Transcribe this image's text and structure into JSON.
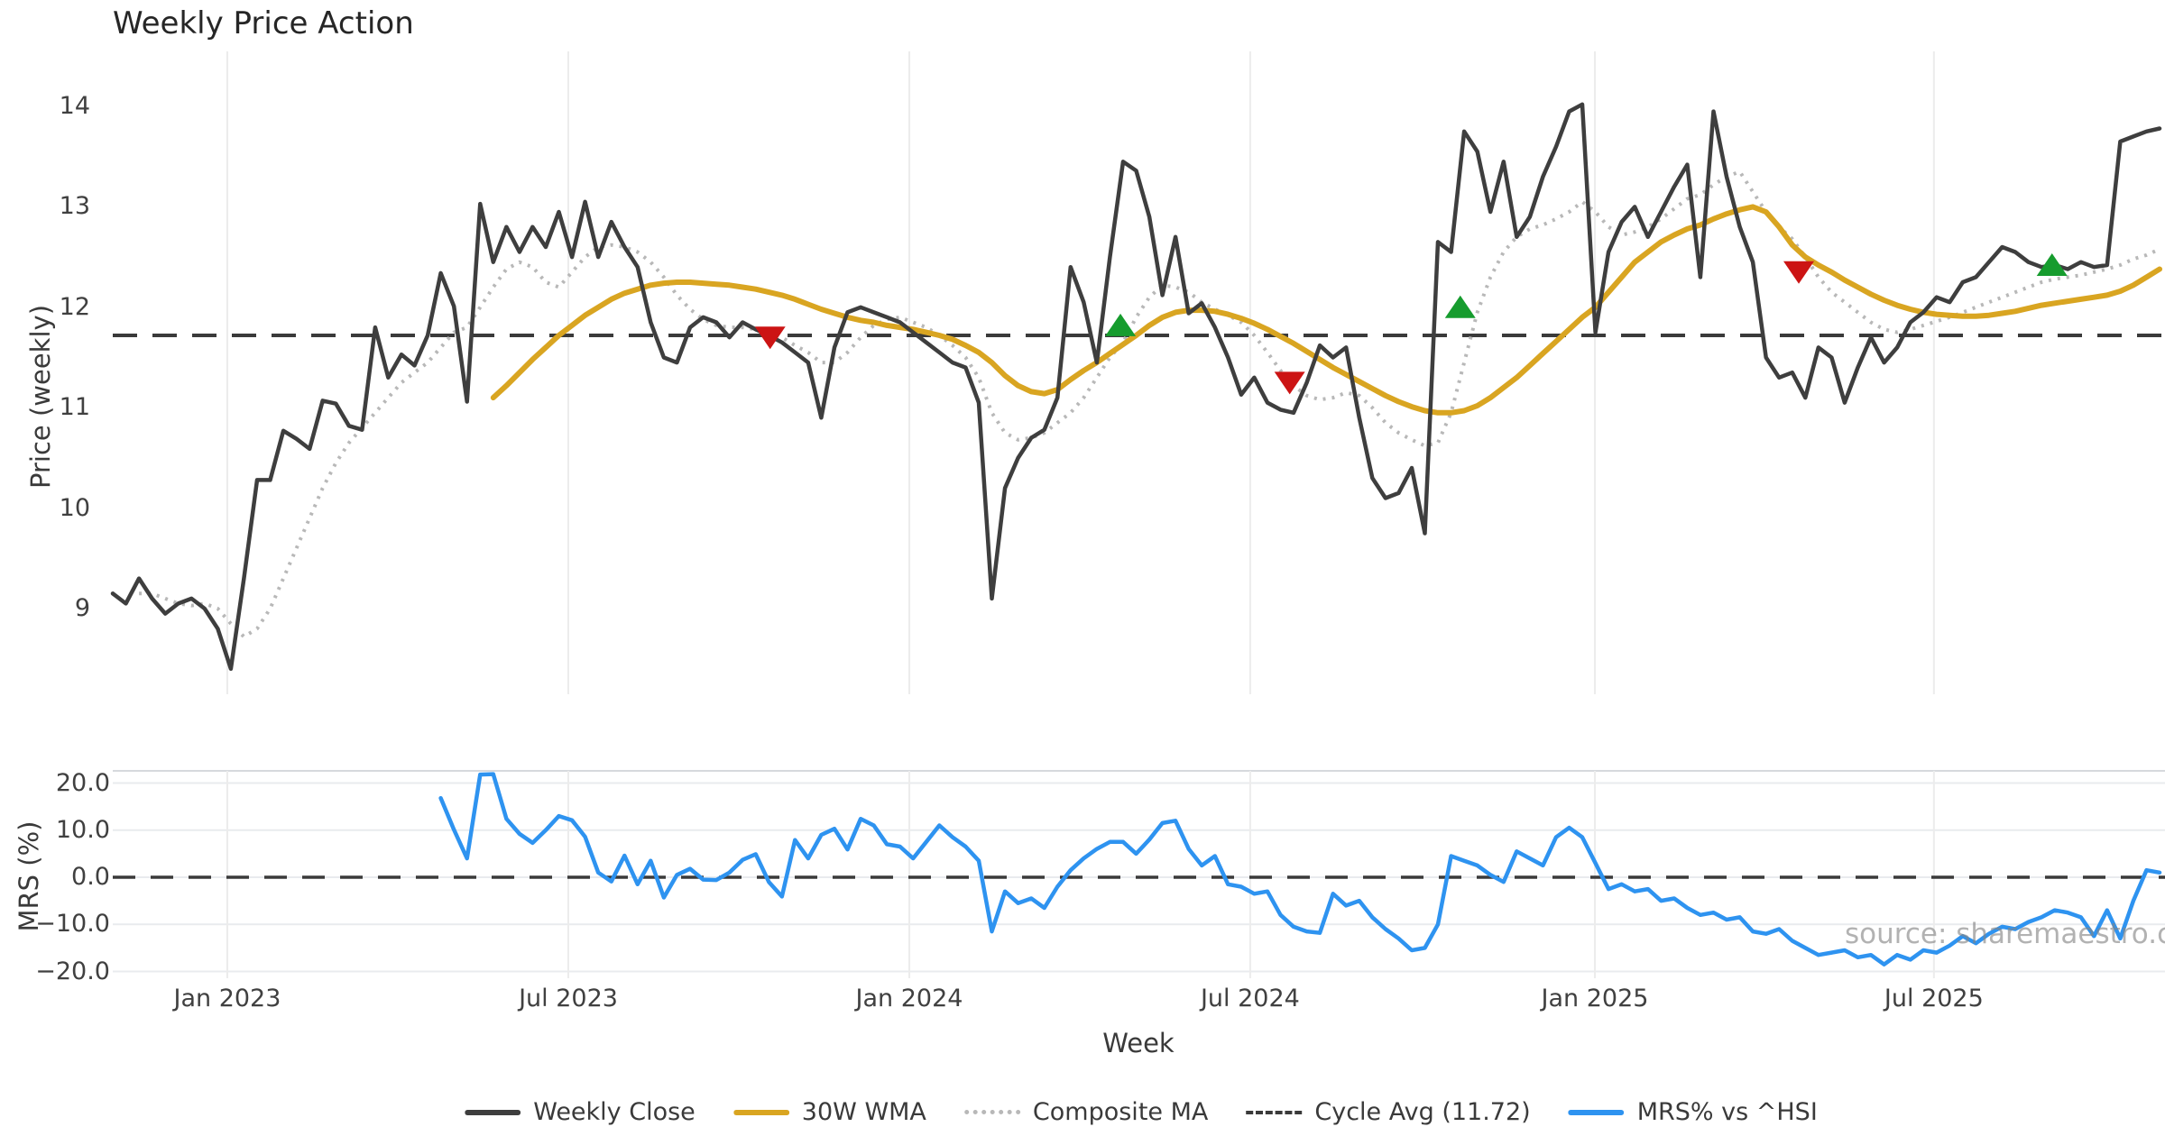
{
  "title": "Weekly Price Action",
  "axis_titles": {
    "price": "Price (weekly)",
    "mrs": "MRS (%)",
    "x": "Week"
  },
  "watermark": "source: sharemaestro.com",
  "colors": {
    "close": "#3e3e3e",
    "wma": "#d9a521",
    "composite": "#b8b8b8",
    "cycle_dash": "#3a3a3a",
    "mrs_blue": "#2e93f0",
    "buy_green": "#169c2e",
    "sell_red": "#cc1414",
    "grid": "#ececec",
    "mrs_grid": "#e9ebee",
    "spine": "#d6d9dd"
  },
  "legend": {
    "items": [
      {
        "label": "Weekly Close",
        "style": "solid",
        "color": "#3e3e3e"
      },
      {
        "label": "30W WMA",
        "style": "solid",
        "color": "#d9a521"
      },
      {
        "label": "Composite MA",
        "style": "dotted",
        "color": "#b8b8b8"
      },
      {
        "label": "Cycle Avg (11.72)",
        "style": "dashed",
        "color": "#3a3a3a"
      },
      {
        "label": "MRS% vs ^HSI",
        "style": "solid",
        "color": "#2e93f0"
      }
    ]
  },
  "chart_data": {
    "type": "line",
    "title": "Weekly Price Action",
    "xlabel": "Week",
    "panels": [
      {
        "id": "price",
        "ylabel": "Price (weekly)",
        "ylim": [
          8.15,
          14.55
        ],
        "yticks": [
          9,
          10,
          11,
          12,
          13,
          14
        ],
        "grid": "vertical"
      },
      {
        "id": "mrs",
        "ylabel": "MRS (%)",
        "ylim": [
          -21.4,
          22.6
        ],
        "yticks": [
          20,
          10,
          0,
          -10,
          -20
        ],
        "ytick_labels": [
          "20.0",
          "10.0",
          "0.0",
          "−10.0",
          "−20.0"
        ],
        "grid": "both",
        "zero_dash": 0.0
      }
    ],
    "x_ticks": [
      {
        "label": "Jan 2023",
        "week": 8.73
      },
      {
        "label": "Jul 2023",
        "week": 34.72
      },
      {
        "label": "Jan 2024",
        "week": 60.71
      },
      {
        "label": "Jul 2024",
        "week": 86.69
      },
      {
        "label": "Jan 2025",
        "week": 112.96
      },
      {
        "label": "Jul 2025",
        "week": 138.8
      }
    ],
    "cycle_avg": 11.72,
    "series": [
      {
        "name": "Weekly Close",
        "panel": "price",
        "style": "solid",
        "color": "#3e3e3e",
        "width": 4.5,
        "start_week": 0,
        "values": [
          9.15,
          9.05,
          9.3,
          9.1,
          8.95,
          9.05,
          9.1,
          9.0,
          8.8,
          8.4,
          9.3,
          10.28,
          10.28,
          10.77,
          10.69,
          10.59,
          11.07,
          11.04,
          10.82,
          10.78,
          11.8,
          11.3,
          11.53,
          11.42,
          11.72,
          12.34,
          12.01,
          11.06,
          13.03,
          12.45,
          12.8,
          12.55,
          12.8,
          12.6,
          12.95,
          12.5,
          13.05,
          12.5,
          12.85,
          12.6,
          12.4,
          11.85,
          11.5,
          11.45,
          11.8,
          11.9,
          11.85,
          11.7,
          11.85,
          11.78,
          11.72,
          11.65,
          11.55,
          11.45,
          10.9,
          11.6,
          11.95,
          12.0,
          11.95,
          11.9,
          11.85,
          11.75,
          11.65,
          11.55,
          11.45,
          11.4,
          11.05,
          9.1,
          10.2,
          10.5,
          10.7,
          10.78,
          11.1,
          12.4,
          12.05,
          11.45,
          12.5,
          13.45,
          13.36,
          12.9,
          12.12,
          12.7,
          11.94,
          12.04,
          11.8,
          11.5,
          11.13,
          11.3,
          11.05,
          10.98,
          10.95,
          11.25,
          11.62,
          11.5,
          11.6,
          10.9,
          10.3,
          10.1,
          10.15,
          10.4,
          9.75,
          12.65,
          12.55,
          13.75,
          13.55,
          12.95,
          13.45,
          12.7,
          12.9,
          13.3,
          13.6,
          13.95,
          14.02,
          11.75,
          12.55,
          12.85,
          13.0,
          12.7,
          12.95,
          13.2,
          13.42,
          12.3,
          13.95,
          13.3,
          12.8,
          12.45,
          11.5,
          11.3,
          11.35,
          11.1,
          11.6,
          11.5,
          11.05,
          11.4,
          11.7,
          11.45,
          11.6,
          11.85,
          11.95,
          12.1,
          12.05,
          12.25,
          12.3,
          12.45,
          12.6,
          12.55,
          12.45,
          12.4,
          12.42,
          12.38,
          12.45,
          12.4,
          12.42,
          13.65,
          13.7,
          13.75,
          13.78
        ]
      },
      {
        "name": "30W WMA",
        "panel": "price",
        "style": "solid",
        "color": "#d9a521",
        "width": 6,
        "start_week": 29,
        "values": [
          11.1,
          11.22,
          11.35,
          11.48,
          11.6,
          11.72,
          11.82,
          11.92,
          12.0,
          12.08,
          12.14,
          12.18,
          12.22,
          12.24,
          12.25,
          12.25,
          12.24,
          12.23,
          12.22,
          12.2,
          12.18,
          12.15,
          12.12,
          12.08,
          12.03,
          11.98,
          11.94,
          11.9,
          11.87,
          11.85,
          11.82,
          11.8,
          11.78,
          11.75,
          11.72,
          11.68,
          11.62,
          11.55,
          11.45,
          11.32,
          11.22,
          11.16,
          11.14,
          11.18,
          11.28,
          11.37,
          11.45,
          11.54,
          11.63,
          11.72,
          11.82,
          11.9,
          11.95,
          11.97,
          11.97,
          11.96,
          11.93,
          11.89,
          11.84,
          11.78,
          11.71,
          11.64,
          11.56,
          11.48,
          11.4,
          11.33,
          11.26,
          11.19,
          11.12,
          11.06,
          11.01,
          10.97,
          10.95,
          10.95,
          10.97,
          11.02,
          11.1,
          11.2,
          11.3,
          11.42,
          11.54,
          11.66,
          11.78,
          11.9,
          12.0,
          12.15,
          12.3,
          12.45,
          12.55,
          12.65,
          12.72,
          12.78,
          12.82,
          12.88,
          12.93,
          12.97,
          13.0,
          12.95,
          12.8,
          12.62,
          12.5,
          12.42,
          12.35,
          12.27,
          12.2,
          12.13,
          12.07,
          12.02,
          11.98,
          11.95,
          11.93,
          11.92,
          11.91,
          11.91,
          11.92,
          11.94,
          11.96,
          11.99,
          12.02,
          12.04,
          12.06,
          12.08,
          12.1,
          12.12,
          12.16,
          12.22,
          12.3,
          12.38
        ]
      },
      {
        "name": "Composite MA",
        "panel": "price",
        "style": "dotted",
        "color": "#b8b8b8",
        "width": 4,
        "start_week": 2,
        "values": [
          9.15,
          9.15,
          9.1,
          9.05,
          9.03,
          9.05,
          9.0,
          8.85,
          8.72,
          8.8,
          9.0,
          9.3,
          9.6,
          9.9,
          10.2,
          10.45,
          10.65,
          10.8,
          10.95,
          11.1,
          11.25,
          11.35,
          11.45,
          11.6,
          11.75,
          11.8,
          12.0,
          12.2,
          12.38,
          12.45,
          12.4,
          12.25,
          12.2,
          12.35,
          12.5,
          12.6,
          12.62,
          12.6,
          12.55,
          12.45,
          12.3,
          12.12,
          11.98,
          11.88,
          11.82,
          11.8,
          11.8,
          11.78,
          11.75,
          11.7,
          11.62,
          11.55,
          11.45,
          11.45,
          11.55,
          11.7,
          11.82,
          11.88,
          11.9,
          11.85,
          11.8,
          11.72,
          11.62,
          11.5,
          11.3,
          10.95,
          10.75,
          10.68,
          10.7,
          10.75,
          10.85,
          10.95,
          11.1,
          11.3,
          11.5,
          11.65,
          11.9,
          12.1,
          12.22,
          12.2,
          12.15,
          12.05,
          11.98,
          11.92,
          11.85,
          11.72,
          11.55,
          11.37,
          11.22,
          11.12,
          11.08,
          11.1,
          11.15,
          11.12,
          11.0,
          10.85,
          10.75,
          10.68,
          10.62,
          10.65,
          10.95,
          11.45,
          11.95,
          12.3,
          12.55,
          12.7,
          12.78,
          12.82,
          12.88,
          12.95,
          13.05,
          12.95,
          12.8,
          12.72,
          12.75,
          12.8,
          12.88,
          12.98,
          13.08,
          13.12,
          13.22,
          13.3,
          13.35,
          13.15,
          12.95,
          12.8,
          12.68,
          12.5,
          12.3,
          12.15,
          12.05,
          11.95,
          11.85,
          11.78,
          11.75,
          11.78,
          11.82,
          11.86,
          11.9,
          11.95,
          12.0,
          12.05,
          12.1,
          12.15,
          12.2,
          12.25,
          12.28,
          12.3,
          12.32,
          12.35,
          12.38,
          12.42,
          12.48,
          12.52,
          12.58
        ]
      },
      {
        "name": "MRS% vs ^HSI",
        "panel": "mrs",
        "style": "solid",
        "color": "#2e93f0",
        "width": 4.5,
        "start_week": 25,
        "values": [
          16.8,
          10.1,
          4.0,
          21.8,
          21.9,
          12.4,
          9.2,
          7.3,
          10.0,
          13.0,
          12.1,
          8.6,
          1.0,
          -0.9,
          4.6,
          -1.5,
          3.5,
          -4.3,
          0.5,
          1.8,
          -0.5,
          -0.6,
          1.0,
          3.7,
          4.9,
          -1.0,
          -4.1,
          7.9,
          4.0,
          9.0,
          10.3,
          5.9,
          12.4,
          11.0,
          7.0,
          6.5,
          4.0,
          7.5,
          11.0,
          8.5,
          6.5,
          3.5,
          -11.5,
          -3.0,
          -5.5,
          -4.5,
          -6.5,
          -2.0,
          1.5,
          4.0,
          6.0,
          7.5,
          7.5,
          5.0,
          8.0,
          11.5,
          12.0,
          6.0,
          2.5,
          4.5,
          -1.5,
          -2.0,
          -3.5,
          -3.0,
          -8.0,
          -10.5,
          -11.5,
          -11.8,
          -3.5,
          -6.0,
          -5.0,
          -8.5,
          -11.0,
          -13.0,
          -15.5,
          -15.0,
          -10.0,
          4.5,
          3.5,
          2.5,
          0.5,
          -1.0,
          5.5,
          4.0,
          2.5,
          8.5,
          10.5,
          8.5,
          3.0,
          -2.5,
          -1.5,
          -3.0,
          -2.5,
          -5.0,
          -4.5,
          -6.5,
          -8.0,
          -7.5,
          -9.0,
          -8.5,
          -11.5,
          -12.0,
          -11.0,
          -13.5,
          -15.0,
          -16.5,
          -16.0,
          -15.5,
          -17.0,
          -16.5,
          -18.5,
          -16.5,
          -17.5,
          -15.5,
          -16.0,
          -14.5,
          -12.5,
          -14.0,
          -12.0,
          -10.5,
          -11.0,
          -9.5,
          -8.5,
          -7.0,
          -7.5,
          -8.5,
          -12.5,
          -7.0,
          -13.0,
          -5.0,
          1.5,
          1.0
        ]
      }
    ],
    "markers": {
      "buy": [
        {
          "week": 76.8,
          "price": 11.82
        },
        {
          "week": 102.7,
          "price": 12.0
        },
        {
          "week": 147.8,
          "price": 12.42
        }
      ],
      "sell": [
        {
          "week": 50.1,
          "price": 11.7
        },
        {
          "week": 89.7,
          "price": 11.25
        },
        {
          "week": 128.5,
          "price": 12.35
        }
      ]
    }
  }
}
